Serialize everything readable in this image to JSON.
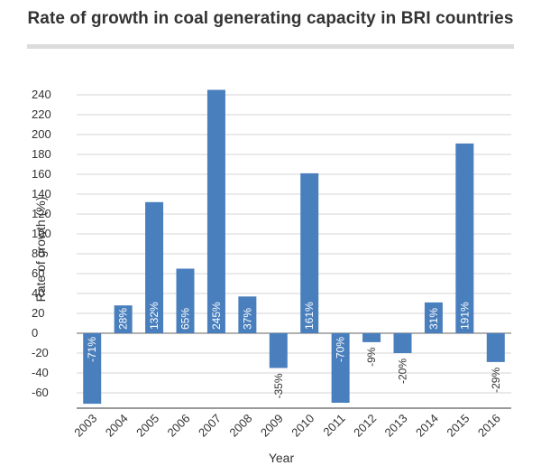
{
  "chart_data": {
    "type": "bar",
    "title": "Rate of growth in coal generating capacity in BRI countries",
    "xlabel": "Year",
    "ylabel": "Rate of growth  (%)",
    "categories": [
      "2003",
      "2004",
      "2005",
      "2006",
      "2007",
      "2008",
      "2009",
      "2010",
      "2011",
      "2012",
      "2013",
      "2014",
      "2015",
      "2016"
    ],
    "values": [
      -71,
      28,
      132,
      65,
      245,
      37,
      -35,
      161,
      -70,
      -9,
      -20,
      31,
      191,
      -29
    ],
    "data_labels": [
      "-71%",
      "28%",
      "132%",
      "65%",
      "245%",
      "37%",
      "-35%",
      "161%",
      "-70%",
      "-9%",
      "-20%",
      "31%",
      "191%",
      "-29%"
    ],
    "yticks": [
      -60,
      -40,
      -20,
      0,
      20,
      40,
      60,
      80,
      100,
      120,
      140,
      160,
      180,
      200,
      220,
      240
    ],
    "ylim": [
      -72,
      245
    ],
    "grid": true,
    "legend": "none",
    "bar_color": "#4a7fbd",
    "grid_color": "#d4d4d4"
  }
}
